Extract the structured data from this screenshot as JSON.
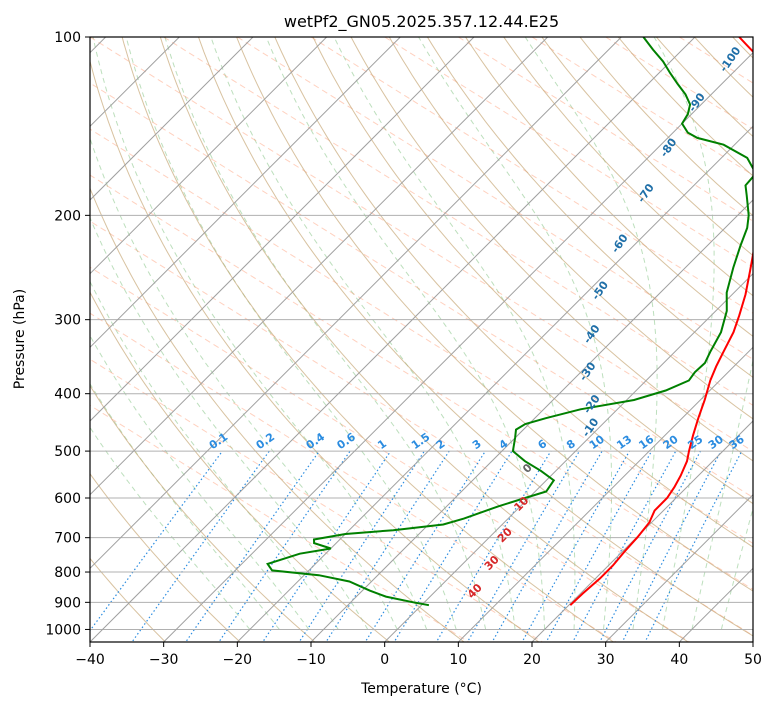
{
  "chart_data": {
    "type": "line",
    "title": "wetPf2_GN05.2025.357.12.44.E25",
    "xlabel": "Temperature (°C)",
    "ylabel": "Pressure (hPa)",
    "xlim": [
      -40,
      50
    ],
    "ylim": [
      1050,
      100
    ],
    "yscale": "log",
    "grid": true,
    "x_ticks": [
      -40,
      -30,
      -20,
      -10,
      0,
      10,
      20,
      30,
      40,
      50
    ],
    "y_ticks": [
      100,
      200,
      300,
      400,
      500,
      600,
      700,
      800,
      900,
      1000
    ],
    "skew": 45,
    "series": [
      {
        "key": "temperature",
        "color": "#ff0000",
        "points": [
          [
            20.2,
            910
          ],
          [
            20.3,
            870
          ],
          [
            20.6,
            820
          ],
          [
            20.6,
            780
          ],
          [
            20.3,
            740
          ],
          [
            20.1,
            700
          ],
          [
            19.7,
            660
          ],
          [
            18.8,
            630
          ],
          [
            18.8,
            600
          ],
          [
            18.3,
            575
          ],
          [
            17.6,
            550
          ],
          [
            16.5,
            520
          ],
          [
            15.4,
            500
          ],
          [
            13.8,
            470
          ],
          [
            12.2,
            440
          ],
          [
            10.6,
            410
          ],
          [
            8.7,
            380
          ],
          [
            7.6,
            360
          ],
          [
            6.6,
            340
          ],
          [
            5.3,
            315
          ],
          [
            3.8,
            295
          ],
          [
            1.8,
            272
          ],
          [
            -0.8,
            248
          ],
          [
            -3.2,
            228
          ],
          [
            -5.0,
            212
          ],
          [
            -7.0,
            200
          ],
          [
            -9.6,
            188
          ],
          [
            -11.5,
            180
          ],
          [
            -12.4,
            174
          ],
          [
            -12.0,
            168
          ],
          [
            -12.2,
            160
          ],
          [
            -14.0,
            150
          ],
          [
            -16.5,
            140
          ],
          [
            -18.0,
            130
          ],
          [
            -20.5,
            122
          ],
          [
            -23.8,
            116
          ],
          [
            -27.5,
            110
          ],
          [
            -32.0,
            103
          ],
          [
            -34.0,
            100
          ]
        ]
      },
      {
        "key": "dewpoint",
        "color": "#008000",
        "points": [
          [
            1.0,
            910
          ],
          [
            -1.5,
            900
          ],
          [
            -6.0,
            880
          ],
          [
            -9.0,
            860
          ],
          [
            -13.0,
            830
          ],
          [
            -18.0,
            810
          ],
          [
            -25.0,
            795
          ],
          [
            -26.5,
            775
          ],
          [
            -23.5,
            745
          ],
          [
            -20.0,
            730
          ],
          [
            -23.0,
            715
          ],
          [
            -23.5,
            705
          ],
          [
            -20.0,
            690
          ],
          [
            -14.0,
            680
          ],
          [
            -8.0,
            665
          ],
          [
            -6.0,
            650
          ],
          [
            -3.0,
            620
          ],
          [
            -0.5,
            600
          ],
          [
            1.5,
            585
          ],
          [
            1.0,
            560
          ],
          [
            -2.0,
            540
          ],
          [
            -5.5,
            520
          ],
          [
            -8.5,
            500
          ],
          [
            -10.0,
            475
          ],
          [
            -11.0,
            460
          ],
          [
            -10.5,
            450
          ],
          [
            -8.5,
            440
          ],
          [
            -5.0,
            425
          ],
          [
            1.0,
            410
          ],
          [
            4.0,
            395
          ],
          [
            5.8,
            380
          ],
          [
            5.5,
            368
          ],
          [
            5.6,
            355
          ],
          [
            4.8,
            340
          ],
          [
            3.6,
            315
          ],
          [
            1.5,
            290
          ],
          [
            -1.0,
            270
          ],
          [
            -3.5,
            245
          ],
          [
            -5.5,
            225
          ],
          [
            -7.0,
            210
          ],
          [
            -8.5,
            200
          ],
          [
            -11.5,
            185
          ],
          [
            -13.0,
            178
          ],
          [
            -13.2,
            170
          ],
          [
            -16.5,
            160
          ],
          [
            -21.5,
            152
          ],
          [
            -26.0,
            148
          ],
          [
            -28.0,
            145
          ],
          [
            -30.0,
            140
          ],
          [
            -30.5,
            135
          ],
          [
            -31.5,
            130
          ],
          [
            -33.5,
            125
          ],
          [
            -36.0,
            120
          ],
          [
            -38.5,
            115
          ],
          [
            -41.0,
            110
          ],
          [
            -44.0,
            105
          ],
          [
            -47.0,
            100
          ]
        ]
      }
    ],
    "dry_adiabat_labels": [
      "-100",
      "-90",
      "-80",
      "-70",
      "-60",
      "-50",
      "-40",
      "-30",
      "-20",
      "-10"
    ],
    "dry_adiabat_label_points": [
      [
        -31.5,
        110
      ],
      [
        -30.2,
        130
      ],
      [
        -27.9,
        155
      ],
      [
        -24.8,
        185
      ],
      [
        -21.5,
        225
      ],
      [
        -17.8,
        270
      ],
      [
        -13.0,
        320
      ],
      [
        -8.5,
        370
      ],
      [
        -3.5,
        420
      ],
      [
        -0.5,
        460
      ]
    ],
    "mixing_ratio_labels": [
      "0.1",
      "0.2",
      "0.4",
      "0.6",
      "1",
      "1.5",
      "2",
      "3",
      "4",
      "6",
      "8",
      "10",
      "13",
      "16",
      "20",
      "25",
      "30",
      "36"
    ],
    "mixing_ratio_values": [
      0.1,
      0.2,
      0.4,
      0.6,
      1,
      1.5,
      2,
      3,
      4,
      6,
      8,
      10,
      13,
      16,
      20,
      25,
      30,
      36
    ],
    "moist_adiabat_labels": [
      "0",
      "10",
      "20",
      "30",
      "40"
    ],
    "moist_adiabat_label_points": [
      [
        -3.5,
        540
      ],
      [
        0.5,
        620
      ],
      [
        2.5,
        700
      ],
      [
        4.5,
        780
      ],
      [
        6.0,
        870
      ]
    ]
  }
}
